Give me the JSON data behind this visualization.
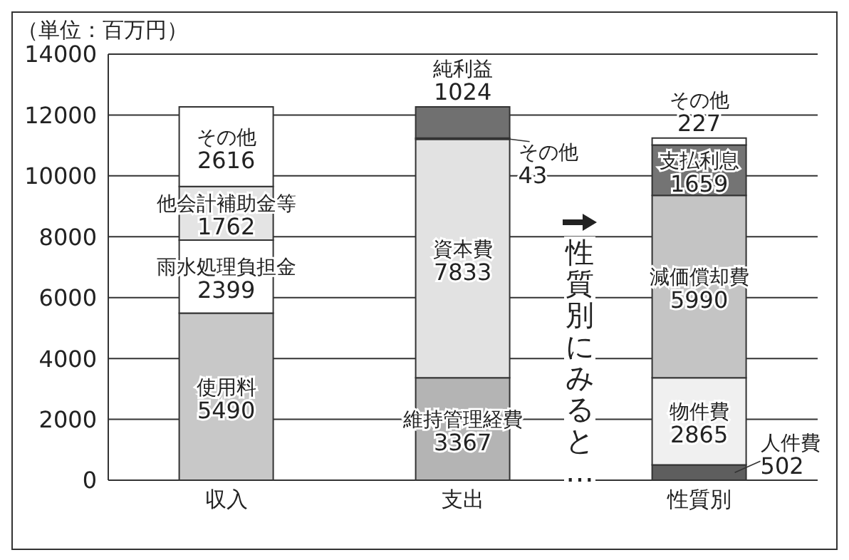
{
  "chart_data": {
    "type": "bar",
    "stacked": true,
    "categories": [
      "収入",
      "支出",
      "性質別"
    ],
    "series": [
      {
        "name": "使用料",
        "color": "#c8c8c8",
        "values": [
          5490,
          null,
          null
        ]
      },
      {
        "name": "雨水処理負担金",
        "color": "#ffffff",
        "values": [
          2399,
          null,
          null
        ]
      },
      {
        "name": "他会計補助金等",
        "color": "#e4e4e4",
        "values": [
          1762,
          null,
          null
        ]
      },
      {
        "name": "その他",
        "color": "#ffffff",
        "values": [
          2616,
          null,
          null
        ]
      },
      {
        "name": "維持管理経費",
        "color": "#b4b4b4",
        "values": [
          null,
          3367,
          null
        ]
      },
      {
        "name": "資本費",
        "color": "#e2e2e2",
        "values": [
          null,
          7833,
          null
        ]
      },
      {
        "name": "その他",
        "color": "#3c3c3c",
        "values": [
          null,
          43,
          null
        ]
      },
      {
        "name": "純利益",
        "color": "#707070",
        "values": [
          null,
          1024,
          null
        ]
      },
      {
        "name": "人件費",
        "color": "#5e5e5e",
        "values": [
          null,
          null,
          502
        ]
      },
      {
        "name": "物件費",
        "color": "#f0f0f0",
        "values": [
          null,
          null,
          2865
        ]
      },
      {
        "name": "減価償却費",
        "color": "#c4c4c4",
        "values": [
          null,
          null,
          5990
        ]
      },
      {
        "name": "支払利息",
        "color": "#747474",
        "values": [
          null,
          null,
          1659
        ]
      },
      {
        "name": "その他",
        "color": "#ffffff",
        "values": [
          null,
          null,
          227
        ]
      }
    ],
    "ylim": [
      0,
      14000
    ],
    "yticks": [
      0,
      2000,
      4000,
      6000,
      8000,
      10000,
      12000,
      14000
    ],
    "grid": "y",
    "legend": false,
    "data_labels": true,
    "annotations": [
      "（単位：百万円）",
      "性質別にみると…"
    ]
  }
}
